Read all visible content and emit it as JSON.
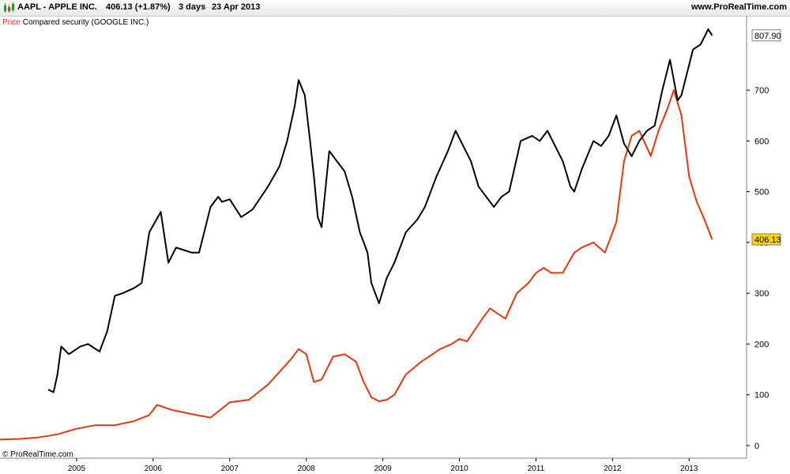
{
  "header": {
    "symbol": "AAPL - APPLE INC.",
    "quote": "406.13 (+1.87%)",
    "period": "3 days",
    "date": "23 Apr 2013",
    "site": "www.ProRealTime.com"
  },
  "legend": {
    "price_label": "Price",
    "compared_label": "Compared security (GOOGLE INC.)"
  },
  "footer": {
    "copyright": "© ProRealTime.com"
  },
  "colors": {
    "aapl": "#e3370f",
    "goog": "#000000",
    "price_tag_bg": "#ffd700",
    "axis": "#808080"
  },
  "chart_data": {
    "type": "line",
    "x_tick_labels": [
      "2005",
      "2006",
      "2007",
      "2008",
      "2009",
      "2010",
      "2011",
      "2012",
      "2013"
    ],
    "y_ticks": [
      0,
      100,
      200,
      300,
      400,
      500,
      600,
      700
    ],
    "ylim": [
      -25,
      820
    ],
    "xlim": [
      2004.0,
      2013.75
    ],
    "last_value_labels": {
      "goog": "807.90",
      "aapl": "406.13"
    },
    "series": [
      {
        "name": "Price",
        "x": [
          2004.0,
          2004.25,
          2004.5,
          2004.75,
          2005.0,
          2005.25,
          2005.5,
          2005.75,
          2005.95,
          2006.05,
          2006.25,
          2006.5,
          2006.75,
          2006.9,
          2007.0,
          2007.25,
          2007.5,
          2007.65,
          2007.8,
          2007.9,
          2008.0,
          2008.1,
          2008.2,
          2008.35,
          2008.5,
          2008.65,
          2008.75,
          2008.85,
          2008.95,
          2009.05,
          2009.15,
          2009.3,
          2009.5,
          2009.75,
          2009.9,
          2010.0,
          2010.1,
          2010.3,
          2010.4,
          2010.5,
          2010.6,
          2010.75,
          2010.9,
          2011.0,
          2011.1,
          2011.2,
          2011.35,
          2011.5,
          2011.6,
          2011.75,
          2011.9,
          2012.0,
          2012.05,
          2012.15,
          2012.25,
          2012.35,
          2012.5,
          2012.6,
          2012.72,
          2012.8,
          2012.9,
          2013.0,
          2013.1,
          2013.2,
          2013.3
        ],
        "y": [
          12,
          13,
          16,
          22,
          33,
          40,
          40,
          48,
          60,
          80,
          70,
          62,
          55,
          73,
          85,
          90,
          120,
          145,
          170,
          190,
          180,
          125,
          130,
          175,
          180,
          165,
          125,
          95,
          87,
          90,
          100,
          140,
          165,
          190,
          200,
          210,
          205,
          250,
          270,
          260,
          250,
          300,
          320,
          340,
          350,
          340,
          340,
          380,
          390,
          400,
          380,
          420,
          440,
          560,
          610,
          620,
          570,
          620,
          665,
          700,
          650,
          530,
          480,
          445,
          406.13
        ]
      },
      {
        "name": "Compared security (GOOGLE INC.)",
        "x": [
          2004.63,
          2004.7,
          2004.75,
          2004.8,
          2004.9,
          2005.05,
          2005.15,
          2005.3,
          2005.4,
          2005.5,
          2005.6,
          2005.75,
          2005.85,
          2005.95,
          2006.1,
          2006.2,
          2006.3,
          2006.4,
          2006.5,
          2006.6,
          2006.75,
          2006.85,
          2006.9,
          2007.0,
          2007.15,
          2007.3,
          2007.5,
          2007.65,
          2007.75,
          2007.85,
          2007.9,
          2007.98,
          2008.05,
          2008.1,
          2008.15,
          2008.2,
          2008.3,
          2008.4,
          2008.5,
          2008.6,
          2008.7,
          2008.75,
          2008.8,
          2008.85,
          2008.95,
          2009.05,
          2009.15,
          2009.3,
          2009.45,
          2009.55,
          2009.7,
          2009.85,
          2009.95,
          2010.05,
          2010.15,
          2010.25,
          2010.35,
          2010.45,
          2010.55,
          2010.65,
          2010.8,
          2010.95,
          2011.05,
          2011.15,
          2011.25,
          2011.35,
          2011.45,
          2011.5,
          2011.6,
          2011.75,
          2011.85,
          2011.95,
          2012.05,
          2012.15,
          2012.25,
          2012.35,
          2012.45,
          2012.55,
          2012.65,
          2012.75,
          2012.85,
          2012.9,
          2013.0,
          2013.05,
          2013.15,
          2013.25,
          2013.3
        ],
        "y": [
          110,
          105,
          140,
          195,
          180,
          195,
          200,
          185,
          225,
          295,
          300,
          310,
          320,
          420,
          460,
          360,
          390,
          385,
          380,
          380,
          470,
          490,
          480,
          485,
          450,
          465,
          510,
          550,
          600,
          670,
          720,
          690,
          600,
          530,
          450,
          430,
          580,
          560,
          540,
          490,
          420,
          400,
          380,
          320,
          280,
          330,
          360,
          420,
          445,
          470,
          530,
          580,
          620,
          590,
          560,
          510,
          490,
          470,
          490,
          500,
          600,
          610,
          600,
          620,
          590,
          560,
          510,
          500,
          545,
          600,
          590,
          610,
          650,
          595,
          570,
          600,
          620,
          630,
          700,
          760,
          680,
          690,
          750,
          780,
          790,
          820,
          807.9
        ]
      }
    ]
  }
}
